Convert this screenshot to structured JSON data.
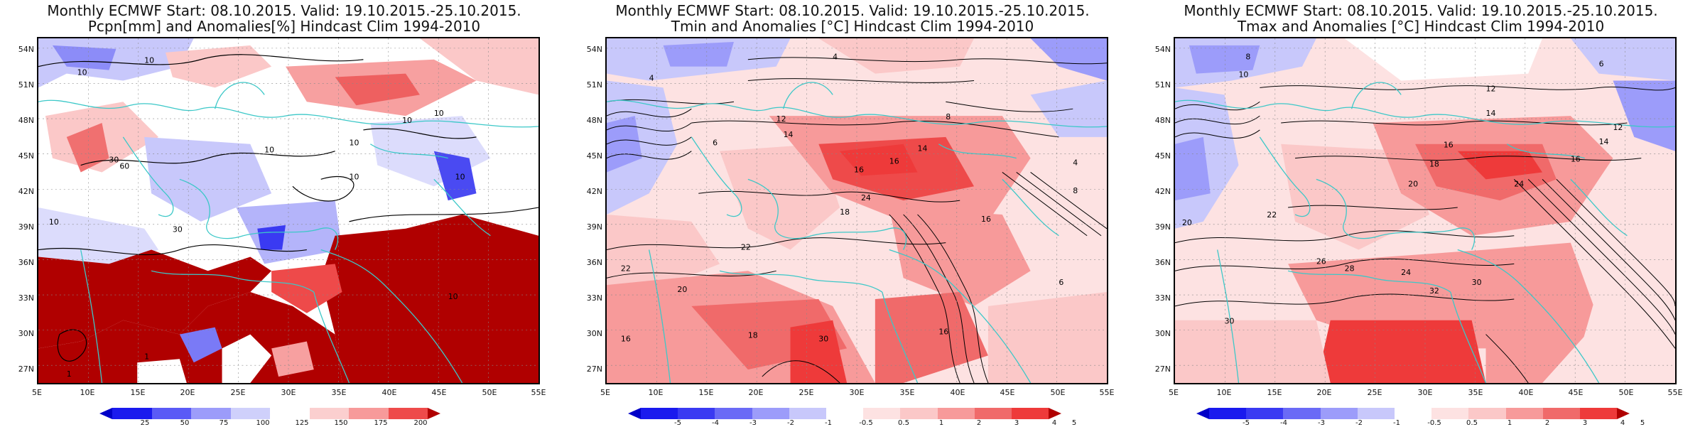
{
  "colors": {
    "coast": "#3cc8c8",
    "contour": "#000000",
    "blue_dark": "#0000c8",
    "red_dark": "#b00000"
  },
  "axes": {
    "lat_labels": [
      "54N",
      "51N",
      "48N",
      "45N",
      "42N",
      "39N",
      "36N",
      "33N",
      "30N",
      "27N"
    ],
    "lon_labels": [
      "5E",
      "10E",
      "15E",
      "20E",
      "25E",
      "30E",
      "35E",
      "40E",
      "45E",
      "50E",
      "55E"
    ]
  },
  "panels": [
    {
      "title_line1": "Monthly ECMWF Start: 08.10.2015. Valid: 19.10.2015.-25.10.2015.",
      "title_line2": "Pcpn[mm] and Anomalies[%] Hindcast Clim 1994-2010",
      "colorbar": {
        "labels": [
          "25",
          "50",
          "75",
          "100",
          "125",
          "150",
          "175",
          "200"
        ],
        "colors": [
          "#1a1aee",
          "#5a5af6",
          "#9c9cfa",
          "#cfd0fb",
          "#ffffff",
          "#fbcfcf",
          "#f79a9a",
          "#ee4a4a",
          "#b00000"
        ],
        "scale": "anomaly %"
      },
      "contour_labels": [
        "10",
        "10",
        "10",
        "10",
        "10",
        "30",
        "30",
        "60",
        "10",
        "10",
        "10",
        "10",
        "10",
        "1",
        "1"
      ]
    },
    {
      "title_line1": "Monthly ECMWF Start: 08.10.2015. Valid: 19.10.2015.-25.10.2015.",
      "title_line2": "Tmin and Anomalies [°C] Hindcast Clim 1994-2010",
      "colorbar": {
        "labels": [
          "-5",
          "-4",
          "-3",
          "-2",
          "-1",
          "-0.5",
          "0.5",
          "1",
          "2",
          "3",
          "4",
          "5"
        ],
        "colors": [
          "#1a1aee",
          "#3a3af2",
          "#6a6af6",
          "#9c9cfa",
          "#c8c8fb",
          "#e2e2fd",
          "#ffffff",
          "#fde2e2",
          "#fbc8c8",
          "#f79a9a",
          "#f06a6a",
          "#ee3a3a",
          "#b00000"
        ],
        "scale": "anomaly °C"
      },
      "contour_labels": [
        "4",
        "4",
        "6",
        "8",
        "12",
        "14",
        "16",
        "14",
        "16",
        "18",
        "20",
        "22",
        "22",
        "16",
        "16",
        "24",
        "30",
        "18",
        "16",
        "8",
        "6",
        "4"
      ]
    },
    {
      "title_line1": "Monthly ECMWF Start: 08.10.2015. Valid: 19.10.2015.-25.10.2015.",
      "title_line2": "Tmax and Anomalies [°C] Hindcast Clim 1994-2010",
      "colorbar": {
        "labels": [
          "-5",
          "-4",
          "-3",
          "-2",
          "-1",
          "-0.5",
          "0.5",
          "1",
          "2",
          "3",
          "4",
          "5"
        ],
        "colors": [
          "#1a1aee",
          "#3a3af2",
          "#6a6af6",
          "#9c9cfa",
          "#c8c8fb",
          "#e2e2fd",
          "#ffffff",
          "#fde2e2",
          "#fbc8c8",
          "#f79a9a",
          "#f06a6a",
          "#ee3a3a",
          "#b00000"
        ],
        "scale": "anomaly °C"
      },
      "contour_labels": [
        "8",
        "6",
        "10",
        "12",
        "14",
        "16",
        "18",
        "20",
        "22",
        "24",
        "26",
        "28",
        "30",
        "32",
        "30",
        "24",
        "20",
        "16",
        "14",
        "12"
      ]
    }
  ]
}
